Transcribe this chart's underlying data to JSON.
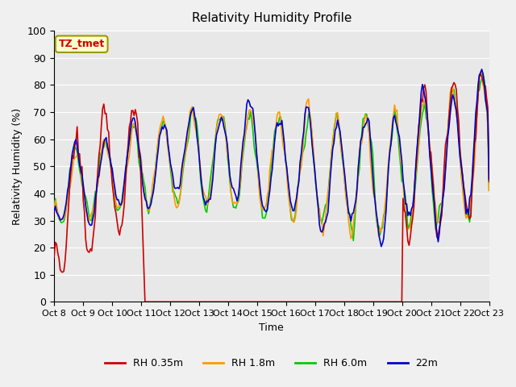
{
  "title": "Relativity Humidity Profile",
  "ylabel": "Relativity Humidity (%)",
  "xlabel": "Time",
  "ylim": [
    0,
    100
  ],
  "yticks": [
    0,
    10,
    20,
    30,
    40,
    50,
    60,
    70,
    80,
    90,
    100
  ],
  "xtick_labels": [
    "Oct 8",
    "Oct 9",
    "Oct 10",
    "Oct 11",
    "Oct 12",
    "Oct 13",
    "Oct 14",
    "Oct 15",
    "Oct 16",
    "Oct 17",
    "Oct 18",
    "Oct 19",
    "Oct 20",
    "Oct 21",
    "Oct 22",
    "Oct 23"
  ],
  "colors": {
    "RH 0.35m": "#cc0000",
    "RH 1.8m": "#ff9900",
    "RH 6.0m": "#00cc00",
    "22m": "#0000cc"
  },
  "bg_color": "#e8e8e8",
  "plot_bg": "#e0e0e0",
  "annotation_text": "TZ_tmet",
  "annotation_color": "#cc0000",
  "annotation_bg": "#ffffcc",
  "legend_labels": [
    "RH 0.35m",
    "RH 1.8m",
    "RH 6.0m",
    "22m"
  ]
}
